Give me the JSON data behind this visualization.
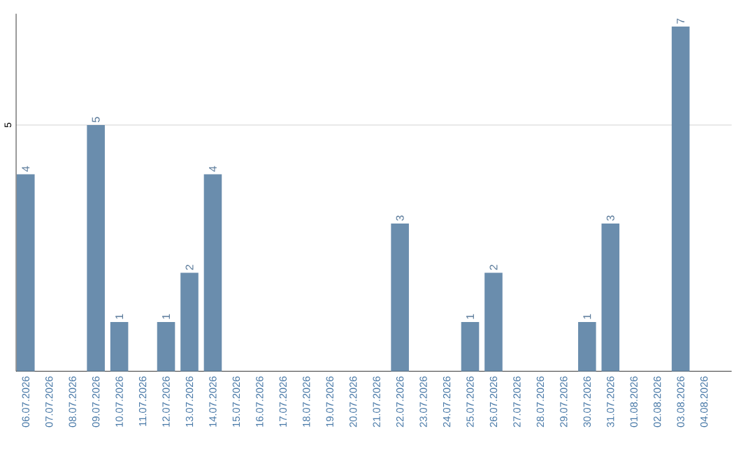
{
  "chart_data": {
    "type": "bar",
    "categories": [
      "06.07.2026",
      "07.07.2026",
      "08.07.2026",
      "09.07.2026",
      "10.07.2026",
      "11.07.2026",
      "12.07.2026",
      "13.07.2026",
      "14.07.2026",
      "15.07.2026",
      "16.07.2026",
      "17.07.2026",
      "18.07.2026",
      "19.07.2026",
      "20.07.2026",
      "21.07.2026",
      "22.07.2026",
      "23.07.2026",
      "24.07.2026",
      "25.07.2026",
      "26.07.2026",
      "27.07.2026",
      "28.07.2026",
      "29.07.2026",
      "30.07.2026",
      "31.07.2026",
      "01.08.2026",
      "02.08.2026",
      "03.08.2026",
      "04.08.2026"
    ],
    "values": [
      4,
      0,
      0,
      5,
      1,
      0,
      1,
      2,
      4,
      0,
      0,
      0,
      0,
      0,
      0,
      0,
      3,
      0,
      0,
      1,
      2,
      0,
      0,
      0,
      1,
      3,
      0,
      0,
      7,
      0
    ],
    "value_labels": [
      "4",
      null,
      null,
      "5",
      "1",
      null,
      "1",
      "2",
      "4",
      null,
      null,
      null,
      null,
      null,
      null,
      null,
      "3",
      null,
      null,
      "1",
      "2",
      null,
      null,
      null,
      "1",
      "3",
      null,
      null,
      "7",
      null
    ],
    "color": "#6a8dad",
    "ylim": [
      0,
      7.26
    ],
    "yticks": [
      5
    ],
    "grid": "y"
  }
}
